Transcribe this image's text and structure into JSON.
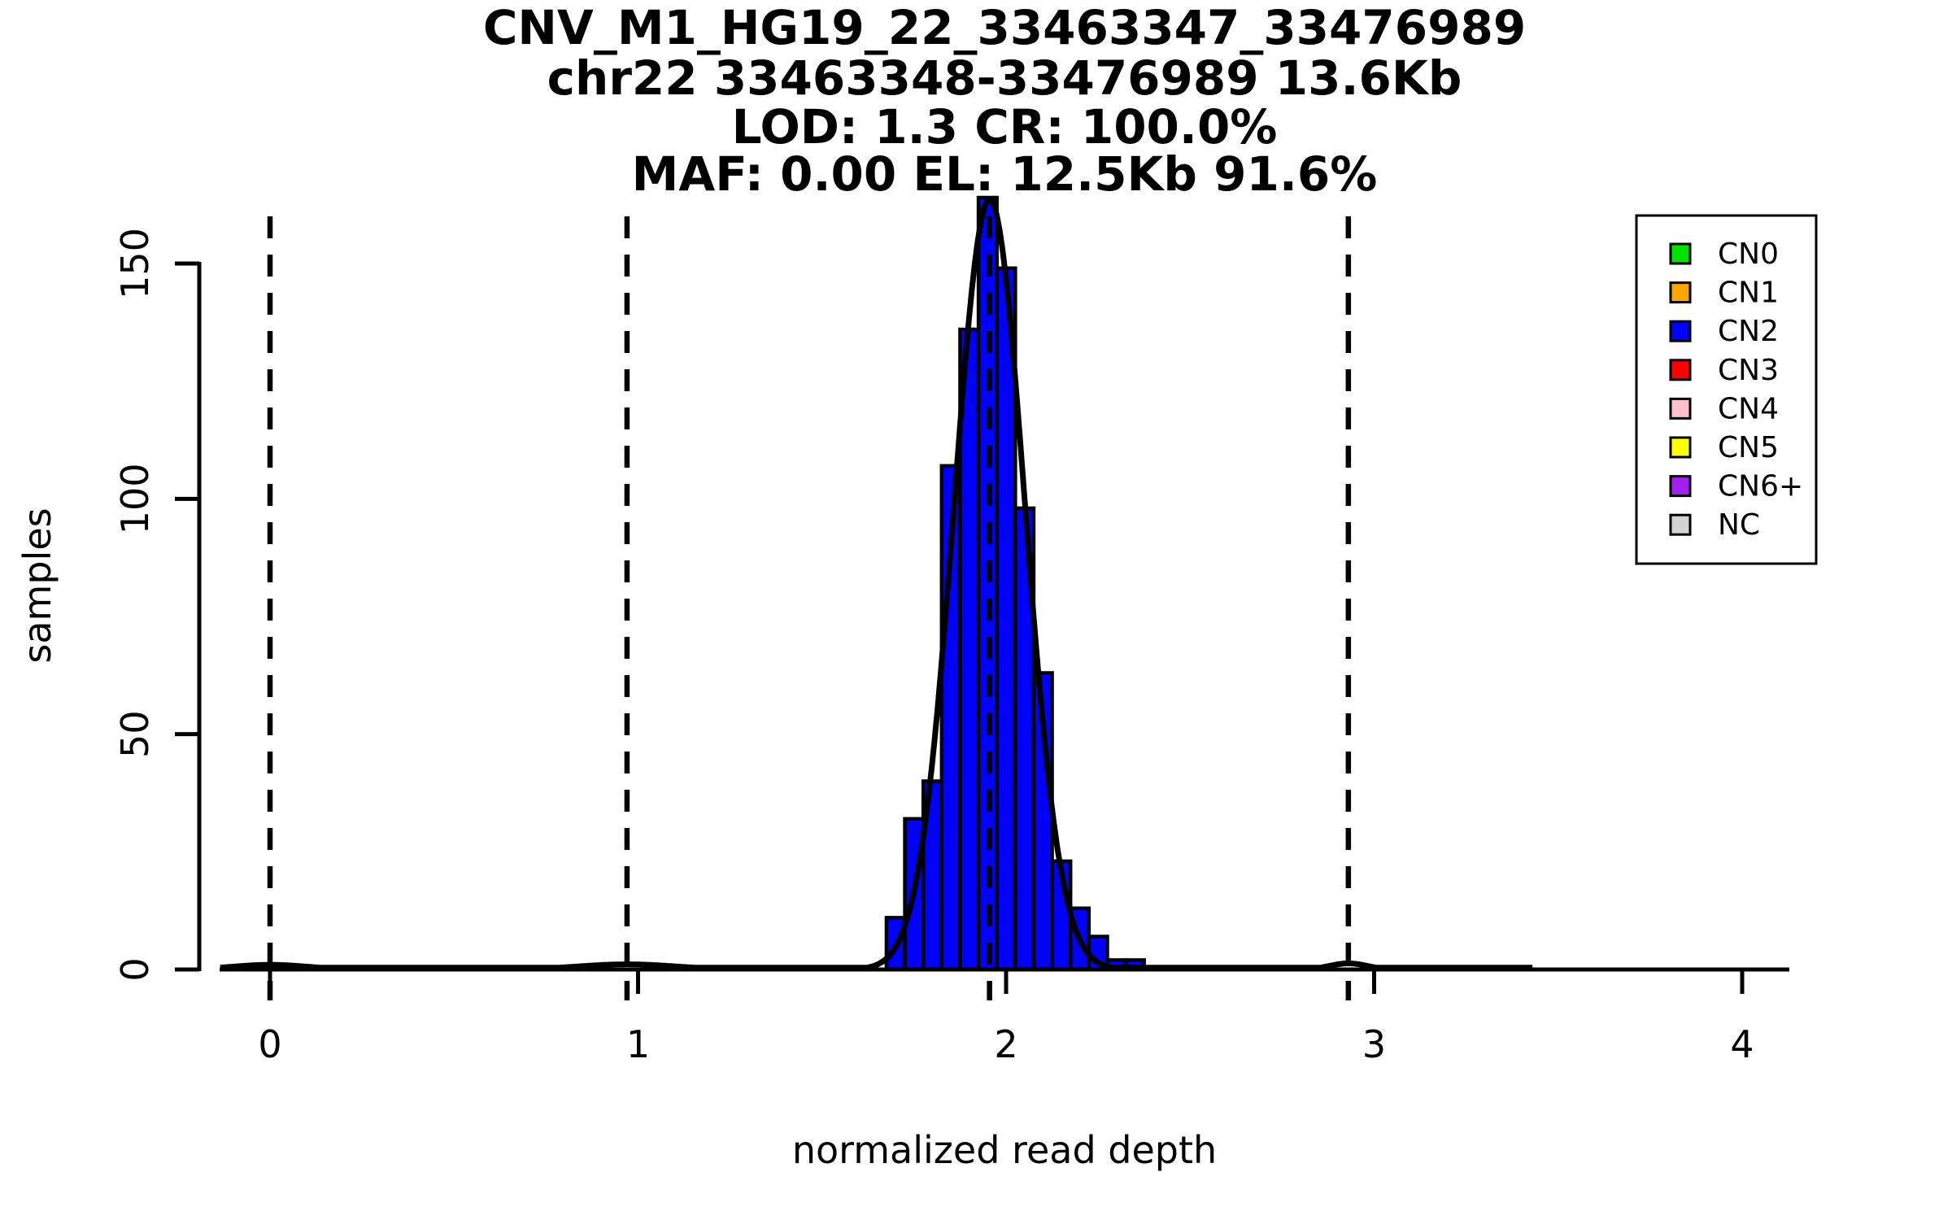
{
  "title": {
    "line1": "CNV_M1_HG19_22_33463347_33476989",
    "line2": "chr22 33463348-33476989 13.6Kb",
    "line3": "LOD: 1.3 CR: 100.0%",
    "line4": "MAF: 0.00 EL: 12.5Kb 91.6%"
  },
  "axes": {
    "x_label": "normalized read depth",
    "y_label": "samples",
    "x_ticks": [
      0,
      1,
      2,
      3,
      4
    ],
    "y_ticks": [
      0,
      50,
      100,
      150
    ]
  },
  "legend": {
    "items": [
      {
        "label": "CN0",
        "color": "#00E300"
      },
      {
        "label": "CN1",
        "color": "#FFA500"
      },
      {
        "label": "CN2",
        "color": "#0000FF"
      },
      {
        "label": "CN3",
        "color": "#FF0000"
      },
      {
        "label": "CN4",
        "color": "#FFC0CB"
      },
      {
        "label": "CN5",
        "color": "#FFFF00"
      },
      {
        "label": "CN6+",
        "color": "#A020F0"
      },
      {
        "label": "NC",
        "color": "#D3D3D3"
      }
    ]
  },
  "chart_data": {
    "type": "bar",
    "subtype": "histogram-with-density-curve",
    "title": "CNV_M1_HG19_22_33463347_33476989 / chr22 33463348-33476989 13.6Kb / LOD: 1.3 CR: 100.0% / MAF: 0.00 EL: 12.5Kb 91.6%",
    "xlabel": "normalized read depth",
    "ylabel": "samples",
    "xlim": [
      -0.14,
      4.27
    ],
    "ylim": [
      0,
      165
    ],
    "grid": false,
    "legend_position": "top-right",
    "bar_color": "#0000FF",
    "bar_outline": "#000000",
    "bin_width": 0.05,
    "bin_centers": [
      1.7,
      1.75,
      1.8,
      1.85,
      1.9,
      1.95,
      2.0,
      2.05,
      2.1,
      2.15,
      2.2,
      2.25,
      2.3,
      2.35
    ],
    "bin_counts": [
      11,
      32,
      40,
      107,
      136,
      164,
      149,
      98,
      63,
      23,
      13,
      7,
      2,
      2
    ],
    "dashed_vlines_x": [
      0.0,
      0.97,
      1.955,
      2.93
    ],
    "density_curve": {
      "color": "#000000",
      "domain": [
        -0.135,
        3.43
      ],
      "floor": 0.4,
      "components": [
        {
          "mean": 1.955,
          "sd": 0.096,
          "peak": 163.6
        },
        {
          "mean": 0.0,
          "sd": 0.1,
          "peak": 1.0
        },
        {
          "mean": 0.97,
          "sd": 0.13,
          "peak": 1.1
        },
        {
          "mean": 2.93,
          "sd": 0.05,
          "peak": 1.3
        }
      ]
    },
    "x_ticks": [
      0,
      1,
      2,
      3,
      4
    ],
    "y_ticks": [
      0,
      50,
      100,
      150
    ],
    "legend_entries": [
      "CN0",
      "CN1",
      "CN2",
      "CN3",
      "CN4",
      "CN5",
      "CN6+",
      "NC"
    ]
  }
}
